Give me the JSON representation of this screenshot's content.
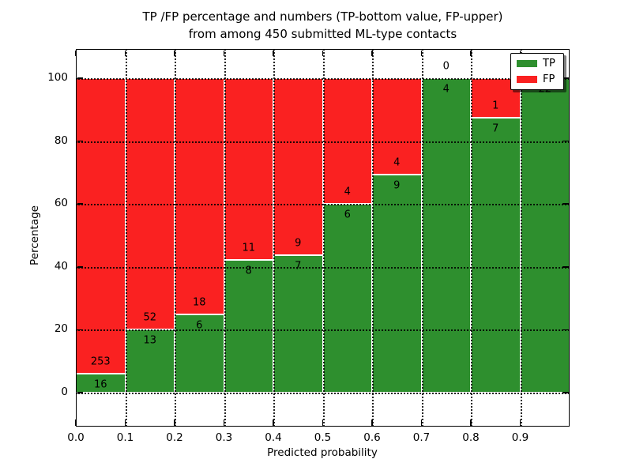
{
  "title": {
    "line1": "TP /FP percentage and numbers (TP-bottom value, FP-upper)",
    "line2": "from among 450 submitted ML-type contacts"
  },
  "axes": {
    "x_label": "Predicted probability",
    "y_label": "Percentage"
  },
  "legend": {
    "items": [
      {
        "label": "TP",
        "color": "#2e8f2e"
      },
      {
        "label": "FP",
        "color": "#fa2121"
      }
    ]
  },
  "chart_data": {
    "type": "bar",
    "subtype": "stacked-percentage",
    "title": "TP /FP percentage and numbers (TP-bottom value, FP-upper) from among 450 submitted ML-type contacts",
    "xlabel": "Predicted probability",
    "ylabel": "Percentage",
    "total_contacts": 450,
    "bin_starts": [
      0.0,
      0.1,
      0.2,
      0.3,
      0.4,
      0.5,
      0.6,
      0.7,
      0.8,
      0.9
    ],
    "bin_width": 0.1,
    "series": [
      {
        "name": "TP",
        "color": "#2e8f2e",
        "counts": [
          16,
          13,
          6,
          8,
          7,
          6,
          9,
          4,
          7,
          22
        ]
      },
      {
        "name": "FP",
        "color": "#fa2121",
        "counts": [
          253,
          52,
          18,
          11,
          9,
          4,
          4,
          0,
          1,
          0
        ]
      }
    ],
    "x_ticks": [
      "0.0",
      "0.1",
      "0.2",
      "0.3",
      "0.4",
      "0.5",
      "0.6",
      "0.7",
      "0.8",
      "0.9"
    ],
    "y_ticks": [
      0,
      20,
      40,
      60,
      80,
      100
    ],
    "xlim": [
      0,
      1
    ],
    "ylim": [
      -10.8,
      109.3
    ],
    "grid": "dotted-black",
    "bar_edge_color": "#ffffff",
    "legend_position": "upper-right"
  }
}
